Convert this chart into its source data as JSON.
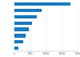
{
  "values": [
    17500,
    8500,
    7000,
    5500,
    4500,
    3500,
    2800,
    1200
  ],
  "bar_color": "#1a7abf",
  "background_color": "#ffffff",
  "xlim": [
    0,
    20000
  ],
  "grid_color": "#d9d9d9",
  "bar_height": 0.55,
  "figsize": [
    1.0,
    0.71
  ],
  "dpi": 100
}
